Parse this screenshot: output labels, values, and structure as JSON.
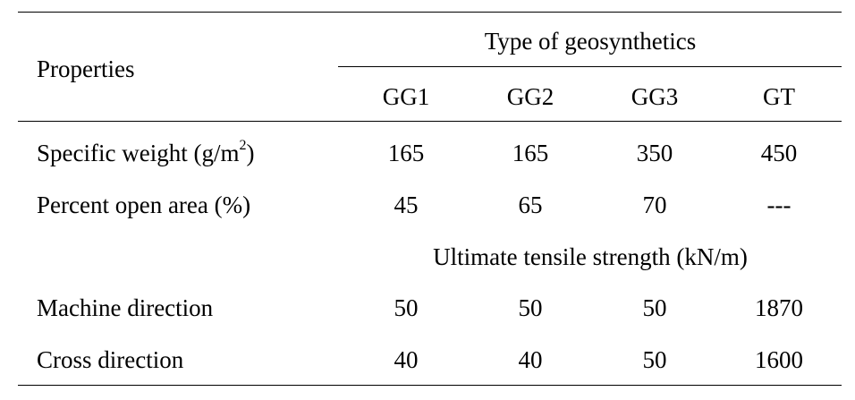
{
  "table": {
    "header": {
      "properties_label": "Properties",
      "group_label": "Type of geosynthetics",
      "columns": [
        "GG1",
        "GG2",
        "GG3",
        "GT"
      ]
    },
    "rows": [
      {
        "label": "Specific weight (g/m",
        "label_superscript": "2",
        "label_suffix": ")",
        "values": [
          "165",
          "165",
          "350",
          "450"
        ]
      },
      {
        "label": "Percent open area (%)",
        "values": [
          "45",
          "65",
          "70",
          "---"
        ]
      }
    ],
    "subheading": "Ultimate tensile strength (kN/m)",
    "strength_rows": [
      {
        "label": "Machine direction",
        "values": [
          "50",
          "50",
          "50",
          "1870"
        ]
      },
      {
        "label": "Cross direction",
        "values": [
          "40",
          "40",
          "50",
          "1600"
        ]
      }
    ]
  }
}
